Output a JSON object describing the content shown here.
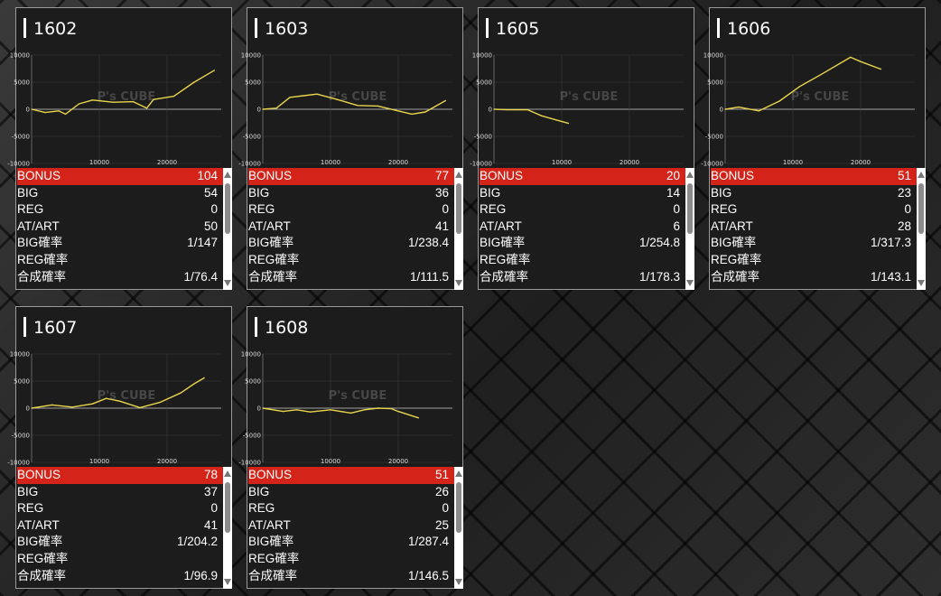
{
  "chart_scale": {
    "x_ticks": [
      10000,
      20000
    ],
    "y_ticks": [
      10000,
      5000,
      0,
      -5000,
      -10000
    ],
    "xlim": [
      0,
      28000
    ],
    "ylim": [
      -10000,
      10000
    ]
  },
  "watermark": {
    "text": "P's CUBE"
  },
  "labels": {
    "bonus": "BONUS",
    "big": "BIG",
    "reg": "REG",
    "at": "AT/ART",
    "big_rate": "BIG確率",
    "reg_rate": "REG確率",
    "total_rate": "合成確率"
  },
  "colors": {
    "line": "#e8d44d",
    "bonus_bg": "#d42419"
  },
  "machines": [
    {
      "number": "1602",
      "bonus": "104",
      "big": "54",
      "reg": "0",
      "at": "50",
      "big_rate": "1/147",
      "reg_rate": "",
      "total_rate": "1/76.4"
    },
    {
      "number": "1603",
      "bonus": "77",
      "big": "36",
      "reg": "0",
      "at": "41",
      "big_rate": "1/238.4",
      "reg_rate": "",
      "total_rate": "1/111.5"
    },
    {
      "number": "1605",
      "bonus": "20",
      "big": "14",
      "reg": "0",
      "at": "6",
      "big_rate": "1/254.8",
      "reg_rate": "",
      "total_rate": "1/178.3"
    },
    {
      "number": "1606",
      "bonus": "51",
      "big": "23",
      "reg": "0",
      "at": "28",
      "big_rate": "1/317.3",
      "reg_rate": "",
      "total_rate": "1/143.1"
    },
    {
      "number": "1607",
      "bonus": "78",
      "big": "37",
      "reg": "0",
      "at": "41",
      "big_rate": "1/204.2",
      "reg_rate": "",
      "total_rate": "1/96.9"
    },
    {
      "number": "1608",
      "bonus": "51",
      "big": "26",
      "reg": "0",
      "at": "25",
      "big_rate": "1/287.4",
      "reg_rate": "",
      "total_rate": "1/146.5"
    }
  ],
  "chart_data": [
    {
      "type": "line",
      "title": "1602",
      "x": [
        0,
        2000,
        4000,
        5000,
        7000,
        9000,
        12000,
        15000,
        17000,
        18000,
        21000,
        24000,
        27000
      ],
      "y": [
        0,
        -600,
        -300,
        -900,
        1000,
        1700,
        1300,
        1400,
        200,
        1800,
        2400,
        5000,
        7200
      ],
      "ylim": [
        -10000,
        10000
      ]
    },
    {
      "type": "line",
      "title": "1603",
      "x": [
        0,
        2000,
        4000,
        6000,
        8000,
        11000,
        14000,
        17000,
        20000,
        22000,
        24000,
        27000
      ],
      "y": [
        0,
        200,
        2200,
        2500,
        2800,
        1800,
        700,
        600,
        -300,
        -900,
        -500,
        1600
      ],
      "ylim": [
        -10000,
        10000
      ]
    },
    {
      "type": "line",
      "title": "1605",
      "x": [
        0,
        2000,
        5000,
        7000,
        9000,
        11000
      ],
      "y": [
        0,
        -100,
        -100,
        -1200,
        -1900,
        -2600
      ],
      "ylim": [
        -10000,
        10000
      ]
    },
    {
      "type": "line",
      "title": "1606",
      "x": [
        0,
        2000,
        5000,
        8000,
        11000,
        14000,
        17000,
        18500,
        20000,
        23000
      ],
      "y": [
        0,
        400,
        -300,
        1500,
        4200,
        6300,
        8500,
        9600,
        8800,
        7400
      ],
      "ylim": [
        -10000,
        10000
      ]
    },
    {
      "type": "line",
      "title": "1607",
      "x": [
        0,
        3000,
        6000,
        9000,
        11000,
        13000,
        16000,
        19000,
        22000,
        24000,
        25500
      ],
      "y": [
        0,
        600,
        200,
        800,
        1800,
        1300,
        100,
        1100,
        2800,
        4500,
        5600
      ],
      "ylim": [
        -10000,
        10000
      ]
    },
    {
      "type": "line",
      "title": "1608",
      "x": [
        0,
        3000,
        5000,
        7000,
        10000,
        13000,
        15000,
        17000,
        19000,
        20000,
        23000
      ],
      "y": [
        0,
        -600,
        -300,
        -700,
        -300,
        -900,
        -300,
        0,
        -100,
        -600,
        -1800
      ],
      "ylim": [
        -10000,
        10000
      ]
    }
  ]
}
